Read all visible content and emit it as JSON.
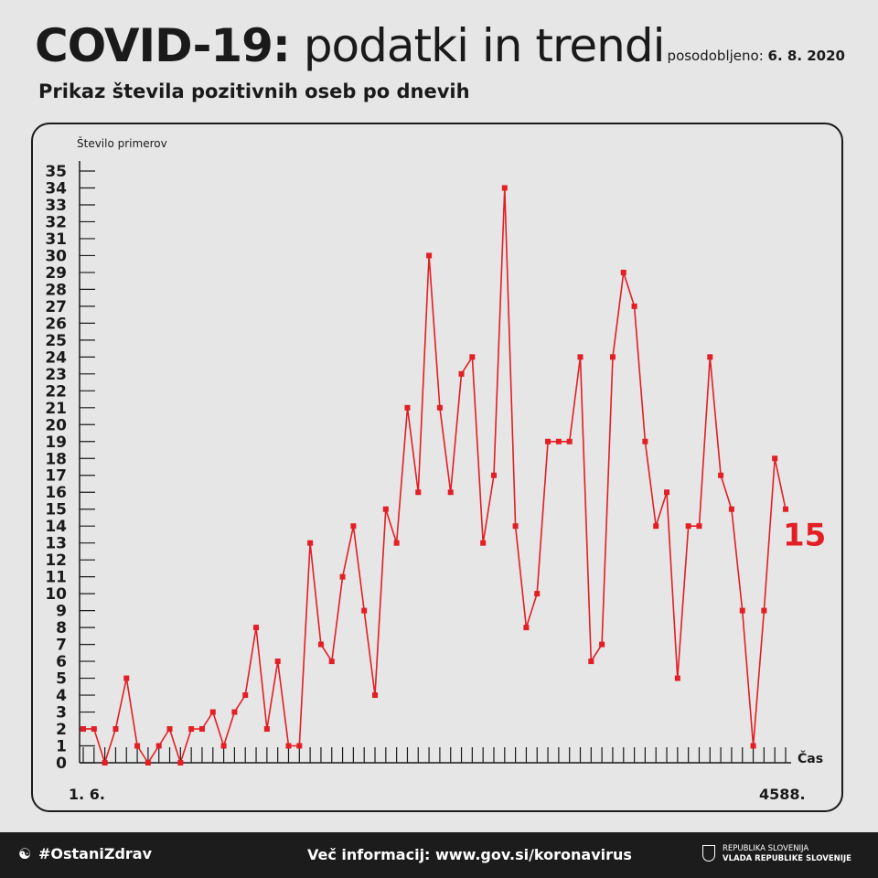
{
  "header": {
    "title_bold": "COVID-19:",
    "title_rest": " podatki in trendi",
    "updated_label": "posodobljeno: ",
    "updated_date": "6. 8. 2020",
    "subtitle": "Prikaz števila pozitivnih oseb po dnevih"
  },
  "chart_data": {
    "type": "line",
    "ylabel": "Število primerov",
    "xlabel": "Čas",
    "x_start_label": "1. 6.",
    "x_end_label": "4588.",
    "ylim": [
      0,
      35
    ],
    "y_ticks": [
      "0",
      "1",
      "2",
      "3",
      "4",
      "5",
      "6",
      "7",
      "8",
      "9",
      "10",
      "11",
      "12",
      "13",
      "14",
      "15",
      "16",
      "17",
      "18",
      "19",
      "20",
      "21",
      "22",
      "23",
      "24",
      "25",
      "26",
      "27",
      "28",
      "29",
      "30",
      "31",
      "32",
      "33",
      "34",
      "35"
    ],
    "series": [
      {
        "values": [
          2,
          2,
          0,
          2,
          5,
          1,
          0,
          1,
          2,
          0,
          2,
          2,
          3,
          1,
          3,
          4,
          8,
          2,
          6,
          1,
          1,
          13,
          7,
          6,
          11,
          14,
          9,
          4,
          15,
          13,
          21,
          16,
          30,
          21,
          16,
          23,
          24,
          13,
          17,
          34,
          14,
          8,
          10,
          19,
          19,
          19,
          24,
          6,
          7,
          24,
          29,
          27,
          19,
          14,
          16,
          5,
          14,
          14,
          24,
          17,
          15,
          9,
          1,
          9,
          18,
          15
        ]
      }
    ],
    "last_value_label": "15",
    "colors": {
      "line": "#e31e24",
      "axis": "#1a1a1a"
    },
    "grid": false
  },
  "footer": {
    "hashtag": "#OstaniZdrav",
    "hashtag_icon": "person-icon",
    "info": "Več informacij: www.gov.si/koronavirus",
    "gov_line1": "REPUBLIKA SLOVENIJA",
    "gov_line2": "VLADA REPUBLIKE SLOVENIJE"
  }
}
